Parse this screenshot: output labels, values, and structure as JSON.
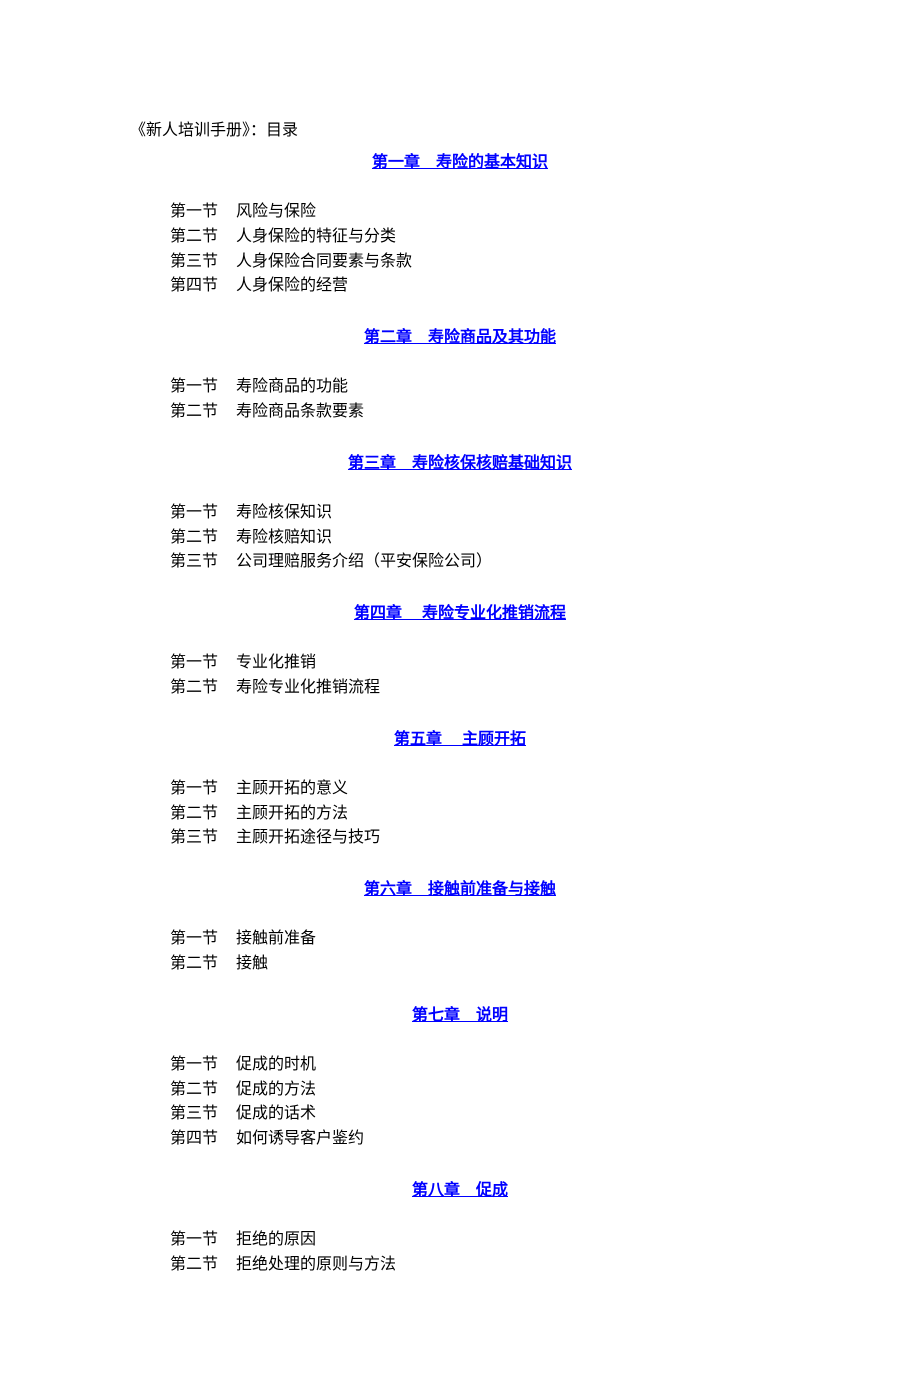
{
  "colors": {
    "background": "#ffffff",
    "text": "#000000",
    "link": "#0000ff"
  },
  "typography": {
    "font_family": "SimSun",
    "base_fontsize_pt": 12,
    "chapter_fontweight": "bold",
    "chapter_underline": true
  },
  "doc_title": "《新人培训手册》：目录",
  "chapters": [
    {
      "heading": "第一章　寿险的基本知识",
      "sections": [
        {
          "num": "第一节",
          "title": "风险与保险"
        },
        {
          "num": "第二节",
          "title": "人身保险的特征与分类"
        },
        {
          "num": "第三节",
          "title": "人身保险合同要素与条款"
        },
        {
          "num": "第四节",
          "title": "人身保险的经营"
        }
      ]
    },
    {
      "heading": "第二章　寿险商品及其功能",
      "sections": [
        {
          "num": "第一节",
          "title": "寿险商品的功能"
        },
        {
          "num": "第二节",
          "title": "寿险商品条款要素"
        }
      ]
    },
    {
      "heading": "第三章　寿险核保核赔基础知识",
      "sections": [
        {
          "num": "第一节",
          "title": "寿险核保知识"
        },
        {
          "num": "第二节",
          "title": "寿险核赔知识"
        },
        {
          "num": "第三节",
          "title": "公司理赔服务介绍（平安保险公司）"
        }
      ]
    },
    {
      "heading": "第四章　 寿险专业化推销流程",
      "sections": [
        {
          "num": "第一节",
          "title": "专业化推销"
        },
        {
          "num": "第二节",
          "title": "寿险专业化推销流程"
        }
      ]
    },
    {
      "heading": "第五章　 主顾开拓",
      "sections": [
        {
          "num": "第一节",
          "title": "主顾开拓的意义"
        },
        {
          "num": "第二节",
          "title": "主顾开拓的方法"
        },
        {
          "num": "第三节",
          "title": "主顾开拓途径与技巧"
        }
      ]
    },
    {
      "heading": "第六章　接触前准备与接触",
      "sections": [
        {
          "num": "第一节",
          "title": "接触前准备"
        },
        {
          "num": "第二节",
          "title": "接触"
        }
      ]
    },
    {
      "heading": "第七章　说明",
      "sections": [
        {
          "num": "第一节",
          "title": "促成的时机"
        },
        {
          "num": "第二节",
          "title": "促成的方法"
        },
        {
          "num": "第三节",
          "title": "促成的话术"
        },
        {
          "num": "第四节",
          "title": "如何诱导客户鉴约"
        }
      ]
    },
    {
      "heading": "第八章　促成",
      "sections": [
        {
          "num": "第一节",
          "title": "拒绝的原因"
        },
        {
          "num": "第二节",
          "title": "拒绝处理的原则与方法"
        }
      ]
    }
  ]
}
